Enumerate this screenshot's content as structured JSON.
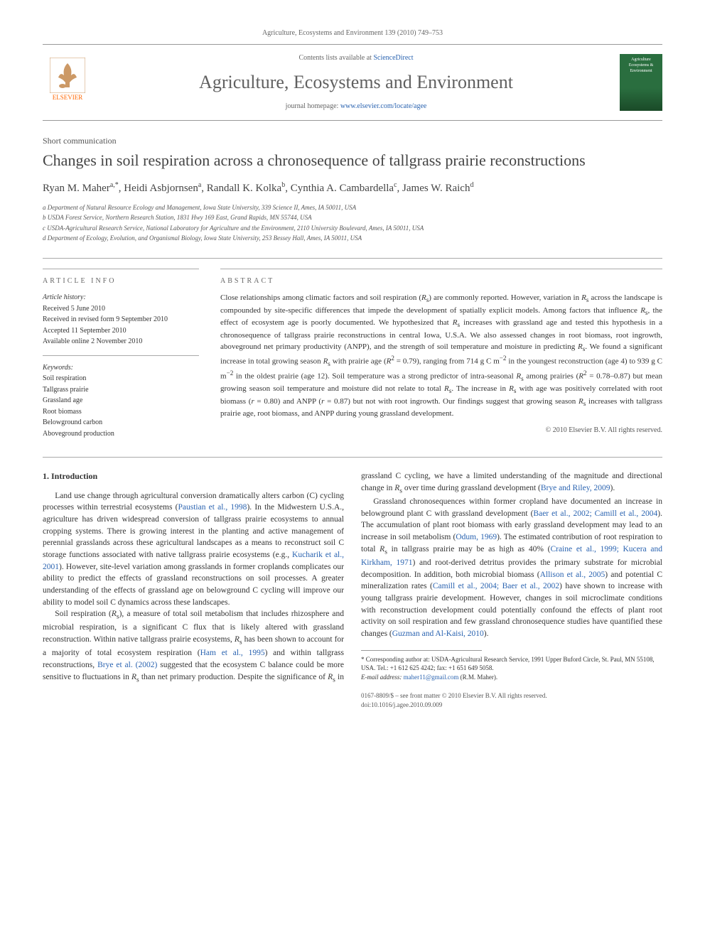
{
  "header": {
    "citation": "Agriculture, Ecosystems and Environment 139 (2010) 749–753",
    "contents_prefix": "Contents lists available at ",
    "contents_link": "ScienceDirect",
    "journal_title": "Agriculture, Ecosystems and Environment",
    "homepage_prefix": "journal homepage: ",
    "homepage_link": "www.elsevier.com/locate/agee",
    "publisher_name": "ELSEVIER",
    "cover_text": "Agriculture Ecosystems & Environment"
  },
  "article": {
    "type": "Short communication",
    "title": "Changes in soil respiration across a chronosequence of tallgrass prairie reconstructions",
    "authors_html": "Ryan M. Maher<sup>a,*</sup>, Heidi Asbjornsen<sup>a</sup>, Randall K. Kolka<sup>b</sup>, Cynthia A. Cambardella<sup>c</sup>, James W. Raich<sup>d</sup>",
    "affiliations": [
      "a Department of Natural Resource Ecology and Management, Iowa State University, 339 Science II, Ames, IA 50011, USA",
      "b USDA Forest Service, Northern Research Station, 1831 Hwy 169 East, Grand Rapids, MN 55744, USA",
      "c USDA-Agricultural Research Service, National Laboratory for Agriculture and the Environment, 2110 University Boulevard, Ames, IA 50011, USA",
      "d Department of Ecology, Evolution, and Organismal Biology, Iowa State University, 253 Bessey Hall, Ames, IA 50011, USA"
    ]
  },
  "info": {
    "heading": "ARTICLE INFO",
    "history_label": "Article history:",
    "history": [
      "Received 5 June 2010",
      "Received in revised form 9 September 2010",
      "Accepted 11 September 2010",
      "Available online 2 November 2010"
    ],
    "keywords_label": "Keywords:",
    "keywords": [
      "Soil respiration",
      "Tallgrass prairie",
      "Grassland age",
      "Root biomass",
      "Belowground carbon",
      "Aboveground production"
    ]
  },
  "abstract": {
    "heading": "ABSTRACT",
    "text_html": "Close relationships among climatic factors and soil respiration (<i>R</i><sub>s</sub>) are commonly reported. However, variation in <i>R</i><sub>s</sub> across the landscape is compounded by site-specific differences that impede the development of spatially explicit models. Among factors that influence <i>R</i><sub>s</sub>, the effect of ecosystem age is poorly documented. We hypothesized that <i>R</i><sub>s</sub> increases with grassland age and tested this hypothesis in a chronosequence of tallgrass prairie reconstructions in central Iowa, U.S.A. We also assessed changes in root biomass, root ingrowth, aboveground net primary productivity (ANPP), and the strength of soil temperature and moisture in predicting <i>R</i><sub>s</sub>. We found a significant increase in total growing season <i>R</i><sub>s</sub> with prairie age (<i>R</i><sup>2</sup> = 0.79), ranging from 714 g C m<sup>−2</sup> in the youngest reconstruction (age 4) to 939 g C m<sup>−2</sup> in the oldest prairie (age 12). Soil temperature was a strong predictor of intra-seasonal <i>R</i><sub>s</sub> among prairies (<i>R</i><sup>2</sup> = 0.78–0.87) but mean growing season soil temperature and moisture did not relate to total <i>R</i><sub>s</sub>. The increase in <i>R</i><sub>s</sub> with age was positively correlated with root biomass (<i>r</i> = 0.80) and ANPP (<i>r</i> = 0.87) but not with root ingrowth. Our findings suggest that growing season <i>R</i><sub>s</sub> increases with tallgrass prairie age, root biomass, and ANPP during young grassland development.",
    "copyright": "© 2010 Elsevier B.V. All rights reserved."
  },
  "body": {
    "section_number": "1.",
    "section_title": "Introduction",
    "p1_html": "Land use change through agricultural conversion dramatically alters carbon (C) cycling processes within terrestrial ecosystems (<a class=\"ref\" href=\"#\">Paustian et al., 1998</a>). In the Midwestern U.S.A., agriculture has driven widespread conversion of tallgrass prairie ecosystems to annual cropping systems. There is growing interest in the planting and active management of perennial grasslands across these agricultural landscapes as a means to reconstruct soil C storage functions associated with native tallgrass prairie ecosystems (e.g., <a class=\"ref\" href=\"#\">Kucharik et al., 2001</a>). However, site-level variation among grasslands in former croplands complicates our ability to predict the effects of grassland reconstructions on soil processes. A greater understanding of the effects of grassland age on belowground C cycling will improve our ability to model soil C dynamics across these landscapes.",
    "p2_html": "Soil respiration (<i>R</i><sub>s</sub>), a measure of total soil metabolism that includes rhizosphere and microbial respiration, is a significant C flux that is likely altered with grassland reconstruction. Within native tallgrass prairie ecosystems, <i>R</i><sub>s</sub> has been shown to account for a majority of total ecosystem respiration (<a class=\"ref\" href=\"#\">Ham et al., 1995</a>) and within tallgrass reconstructions, <a class=\"ref\" href=\"#\">Brye et al. (2002)</a> suggested that the ecosystem C balance could be more sensitive to fluctuations in <i>R</i><sub>s</sub> than net primary production. Despite the significance of <i>R</i><sub>s</sub> in grassland C cycling, we have a limited understanding of the magnitude and directional change in <i>R</i><sub>s</sub> over time during grassland development (<a class=\"ref\" href=\"#\">Brye and Riley, 2009</a>).",
    "p3_html": "Grassland chronosequences within former cropland have documented an increase in belowground plant C with grassland development (<a class=\"ref\" href=\"#\">Baer et al., 2002; Camill et al., 2004</a>). The accumulation of plant root biomass with early grassland development may lead to an increase in soil metabolism (<a class=\"ref\" href=\"#\">Odum, 1969</a>). The estimated contribution of root respiration to total <i>R</i><sub>s</sub> in tallgrass prairie may be as high as 40% (<a class=\"ref\" href=\"#\">Craine et al., 1999; Kucera and Kirkham, 1971</a>) and root-derived detritus provides the primary substrate for microbial decomposition. In addition, both microbial biomass (<a class=\"ref\" href=\"#\">Allison et al., 2005</a>) and potential C mineralization rates (<a class=\"ref\" href=\"#\">Camill et al., 2004; Baer et al., 2002</a>) have shown to increase with young tallgrass prairie development. However, changes in soil microclimate conditions with reconstruction development could potentially confound the effects of plant root activity on soil respiration and few grassland chronosequence studies have quantified these changes (<a class=\"ref\" href=\"#\">Guzman and Al-Kaisi, 2010</a>)."
  },
  "footnote": {
    "corr_text": "* Corresponding author at: USDA-Agricultural Research Service, 1991 Upper Buford Circle, St. Paul, MN 55108, USA. Tel.: +1 612 625 4242; fax: +1 651 649 5058.",
    "email_label": "E-mail address: ",
    "email": "maher11@gmail.com",
    "email_suffix": " (R.M. Maher)."
  },
  "footer": {
    "issn_line": "0167-8809/$ – see front matter © 2010 Elsevier B.V. All rights reserved.",
    "doi_line": "doi:10.1016/j.agee.2010.09.009"
  },
  "colors": {
    "link": "#2a63b0",
    "text": "#333333",
    "muted": "#666666",
    "rule": "#999999",
    "elsevier_orange": "#ff6600",
    "cover_green": "#2a6e3f"
  }
}
